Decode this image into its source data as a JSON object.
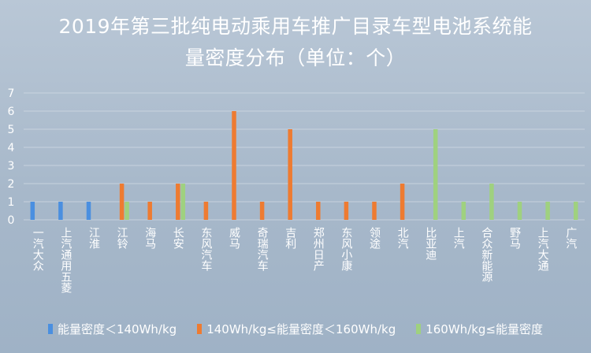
{
  "title": {
    "line1": "2019年第三批纯电动乘用车推广目录车型电池系统能",
    "line2": "量密度分布（单位：个）"
  },
  "colors": {
    "series1": "#4a8fe0",
    "series2": "#ee7b31",
    "series3": "#9fd17f",
    "grid": "#d5dde6",
    "text": "#ffffff"
  },
  "chart_data": {
    "type": "bar",
    "title": "2019年第三批纯电动乘用车推广目录车型电池系统能量密度分布（单位：个）",
    "ylim": [
      0,
      7
    ],
    "yticks": [
      0,
      1,
      2,
      3,
      4,
      5,
      6,
      7
    ],
    "grid": true,
    "legend_position": "bottom",
    "categories": [
      "一汽大众",
      "上汽通用五菱",
      "江淮",
      "江铃",
      "海马",
      "长安",
      "东风汽车",
      "威马",
      "奇瑞汽车",
      "吉利",
      "郑州日产",
      "东风小康",
      "领途",
      "北汽",
      "比亚迪",
      "上汽",
      "合众新能源",
      "野马",
      "上汽大通",
      "广汽"
    ],
    "series": [
      {
        "name": "能量密度＜140Wh/kg",
        "values": [
          1,
          1,
          1,
          0,
          0,
          0,
          0,
          0,
          0,
          0,
          0,
          0,
          0,
          0,
          0,
          0,
          0,
          0,
          0,
          0
        ]
      },
      {
        "name": "140Wh/kg≤能量密度＜160Wh/kg",
        "values": [
          0,
          0,
          0,
          2,
          1,
          2,
          1,
          6,
          1,
          5,
          1,
          1,
          1,
          2,
          0,
          0,
          0,
          0,
          0,
          0
        ]
      },
      {
        "name": "160Wh/kg≤能量密度",
        "values": [
          0,
          0,
          0,
          1,
          0,
          2,
          0,
          0,
          0,
          0,
          0,
          0,
          0,
          0,
          5,
          1,
          2,
          1,
          1,
          1
        ]
      }
    ]
  }
}
